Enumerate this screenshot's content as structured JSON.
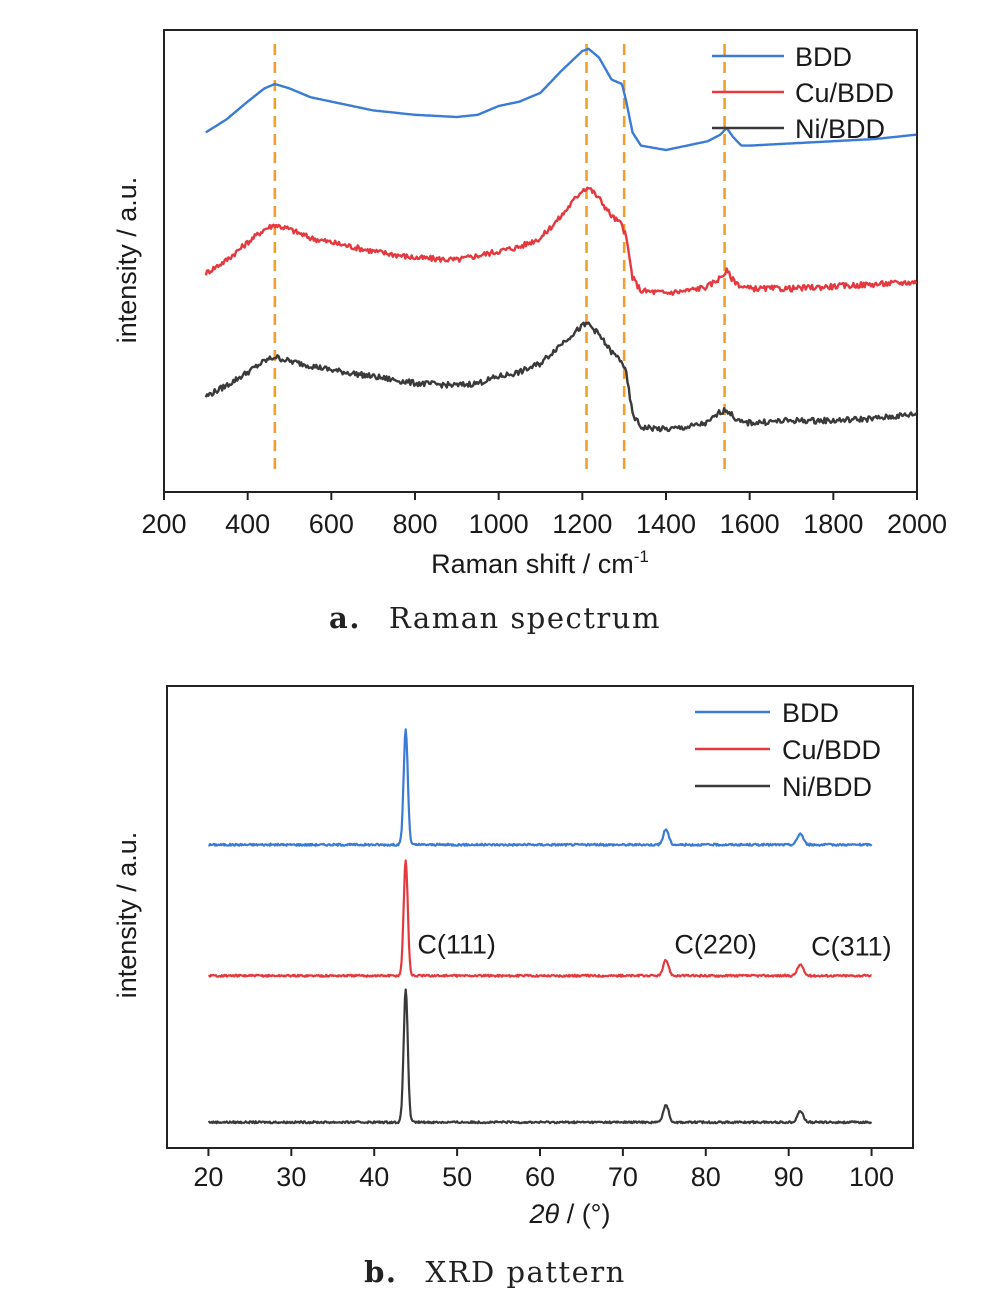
{
  "colors": {
    "bdd": "#3a7bd5",
    "cu_bdd": "#e5393f",
    "ni_bdd": "#3a3a3a",
    "guide": "#f0a030",
    "axis": "#222222"
  },
  "chart_data": [
    {
      "type": "line",
      "caption_letter": "a.",
      "caption_text": "Raman spectrum",
      "xlabel": "Raman shift / cm",
      "xlabel_sup": "-1",
      "ylabel": "intensity / a.u.",
      "xlim": [
        200,
        2000
      ],
      "xticks": [
        "200",
        "400",
        "600",
        "800",
        "1000",
        "1200",
        "1400",
        "1600",
        "1800",
        "2000"
      ],
      "ylim": [
        0,
        100
      ],
      "y_tick_labels": false,
      "grid": false,
      "legend_position": "top-right",
      "legend": [
        "BDD",
        "Cu/BDD",
        "Ni/BDD"
      ],
      "guide_lines_x": [
        465,
        1210,
        1300,
        1540
      ],
      "series": [
        {
          "name": "BDD",
          "color": "#3a7bd5",
          "points": [
            [
              300,
              79
            ],
            [
              350,
              82
            ],
            [
              400,
              86
            ],
            [
              440,
              89
            ],
            [
              465,
              90
            ],
            [
              500,
              89
            ],
            [
              550,
              87
            ],
            [
              600,
              86
            ],
            [
              700,
              84
            ],
            [
              800,
              83
            ],
            [
              900,
              82.5
            ],
            [
              950,
              83
            ],
            [
              1000,
              85
            ],
            [
              1050,
              86
            ],
            [
              1100,
              88
            ],
            [
              1150,
              93
            ],
            [
              1200,
              97.5
            ],
            [
              1215,
              98
            ],
            [
              1240,
              96
            ],
            [
              1270,
              91
            ],
            [
              1295,
              90
            ],
            [
              1305,
              86
            ],
            [
              1320,
              79
            ],
            [
              1340,
              76
            ],
            [
              1400,
              75
            ],
            [
              1450,
              76
            ],
            [
              1500,
              77
            ],
            [
              1530,
              78.5
            ],
            [
              1545,
              80
            ],
            [
              1560,
              78
            ],
            [
              1580,
              76
            ],
            [
              1600,
              76
            ],
            [
              1700,
              76.5
            ],
            [
              1800,
              77
            ],
            [
              1900,
              77.5
            ],
            [
              2000,
              78.5
            ]
          ]
        },
        {
          "name": "Cu/BDD",
          "color": "#e5393f",
          "points": [
            [
              300,
              47
            ],
            [
              350,
              50
            ],
            [
              400,
              54
            ],
            [
              440,
              57
            ],
            [
              465,
              58
            ],
            [
              500,
              57
            ],
            [
              550,
              55
            ],
            [
              600,
              54
            ],
            [
              700,
              52
            ],
            [
              800,
              50.5
            ],
            [
              900,
              50
            ],
            [
              950,
              51
            ],
            [
              1000,
              52
            ],
            [
              1050,
              53
            ],
            [
              1100,
              55
            ],
            [
              1150,
              60
            ],
            [
              1200,
              66
            ],
            [
              1215,
              66.5
            ],
            [
              1240,
              64
            ],
            [
              1270,
              60
            ],
            [
              1295,
              58
            ],
            [
              1305,
              55
            ],
            [
              1320,
              46
            ],
            [
              1340,
              43
            ],
            [
              1400,
              42.5
            ],
            [
              1450,
              43
            ],
            [
              1500,
              44
            ],
            [
              1530,
              46
            ],
            [
              1545,
              47.5
            ],
            [
              1560,
              45.5
            ],
            [
              1580,
              44
            ],
            [
              1600,
              43.5
            ],
            [
              1700,
              43.5
            ],
            [
              1800,
              44
            ],
            [
              1900,
              44.5
            ],
            [
              2000,
              45
            ]
          ]
        },
        {
          "name": "Ni/BDD",
          "color": "#3a3a3a",
          "points": [
            [
              300,
              19
            ],
            [
              350,
              21.5
            ],
            [
              400,
              24.5
            ],
            [
              440,
              27
            ],
            [
              465,
              28
            ],
            [
              500,
              27
            ],
            [
              550,
              26
            ],
            [
              600,
              25
            ],
            [
              700,
              23.5
            ],
            [
              800,
              22
            ],
            [
              900,
              21.5
            ],
            [
              950,
              22
            ],
            [
              1000,
              23.5
            ],
            [
              1050,
              24.5
            ],
            [
              1100,
              26.5
            ],
            [
              1150,
              31
            ],
            [
              1200,
              35
            ],
            [
              1215,
              35.5
            ],
            [
              1240,
              33
            ],
            [
              1270,
              29
            ],
            [
              1295,
              27
            ],
            [
              1305,
              24
            ],
            [
              1320,
              15
            ],
            [
              1340,
              12
            ],
            [
              1400,
              11.5
            ],
            [
              1450,
              12
            ],
            [
              1500,
              13
            ],
            [
              1530,
              15.5
            ],
            [
              1545,
              16
            ],
            [
              1560,
              14.5
            ],
            [
              1580,
              13
            ],
            [
              1600,
              13
            ],
            [
              1700,
              13.5
            ],
            [
              1800,
              13.5
            ],
            [
              1900,
              14
            ],
            [
              2000,
              15
            ]
          ]
        }
      ]
    },
    {
      "type": "line",
      "caption_letter": "b.",
      "caption_text": "XRD pattern",
      "xlabel_theta": "2θ",
      "xlabel_rest": " / (°)",
      "ylabel": "intensity / a.u.",
      "xlim": [
        15,
        105
      ],
      "xticks": [
        "20",
        "30",
        "40",
        "50",
        "60",
        "70",
        "80",
        "90",
        "100"
      ],
      "ylim": [
        0,
        100
      ],
      "y_tick_labels": false,
      "grid": false,
      "legend_position": "top-right",
      "legend": [
        "BDD",
        "Cu/BDD",
        "Ni/BDD"
      ],
      "annotations": [
        {
          "text": "C(111)",
          "x": 44,
          "y": 42
        },
        {
          "text": "C(220)",
          "x": 75,
          "y": 42
        },
        {
          "text": "C(311)",
          "x": 91.5,
          "y": 41.5
        }
      ],
      "peaks": [
        {
          "x": 43.8,
          "width": 0.35
        },
        {
          "x": 75.2,
          "width": 0.45
        },
        {
          "x": 91.4,
          "width": 0.5
        }
      ],
      "series": [
        {
          "name": "BDD",
          "color": "#3a7bd5",
          "baseline": 66.5,
          "peak_heights": [
            26,
            3.5,
            2.5
          ]
        },
        {
          "name": "Cu/BDD",
          "color": "#e5393f",
          "baseline": 37,
          "peak_heights": [
            26,
            3.5,
            2.5
          ]
        },
        {
          "name": "Ni/BDD",
          "color": "#3a3a3a",
          "baseline": 4,
          "peak_heights": [
            30,
            4,
            2.5
          ]
        }
      ]
    }
  ]
}
